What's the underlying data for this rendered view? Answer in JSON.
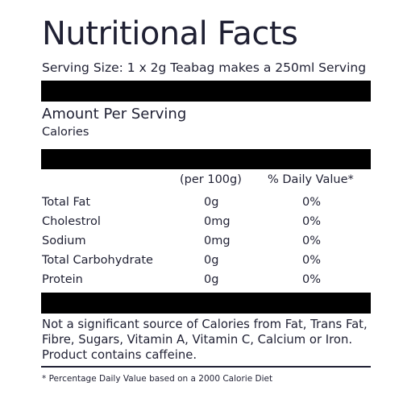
{
  "title": "Nutritional Facts",
  "serving_size": "Serving Size: 1 x 2g Teabag makes a 250ml Serving",
  "amount_per_serving": "Amount Per Serving",
  "calories_label": "Calories",
  "columns": {
    "per_100g": "(per 100g)",
    "daily_value": "% Daily Value*"
  },
  "rows": [
    {
      "name": "Total Fat",
      "per_100g": "0g",
      "daily_value": "0%"
    },
    {
      "name": "Cholestrol",
      "per_100g": "0mg",
      "daily_value": "0%"
    },
    {
      "name": "Sodium",
      "per_100g": "0mg",
      "daily_value": "0%"
    },
    {
      "name": "Total Carbohydrate",
      "per_100g": "0g",
      "daily_value": "0%"
    },
    {
      "name": "Protein",
      "per_100g": "0g",
      "daily_value": "0%"
    }
  ],
  "note": "Not a significant source of Calories from Fat, Trans Fat, Fibre, Sugars, Vitamin A, Vitamin C, Calcium or Iron. Product contains caffeine.",
  "footnote": "* Percentage Daily Value based on a 2000 Calorie Diet",
  "colors": {
    "text": "#1f2033",
    "bar": "#000000",
    "background": "#ffffff"
  }
}
